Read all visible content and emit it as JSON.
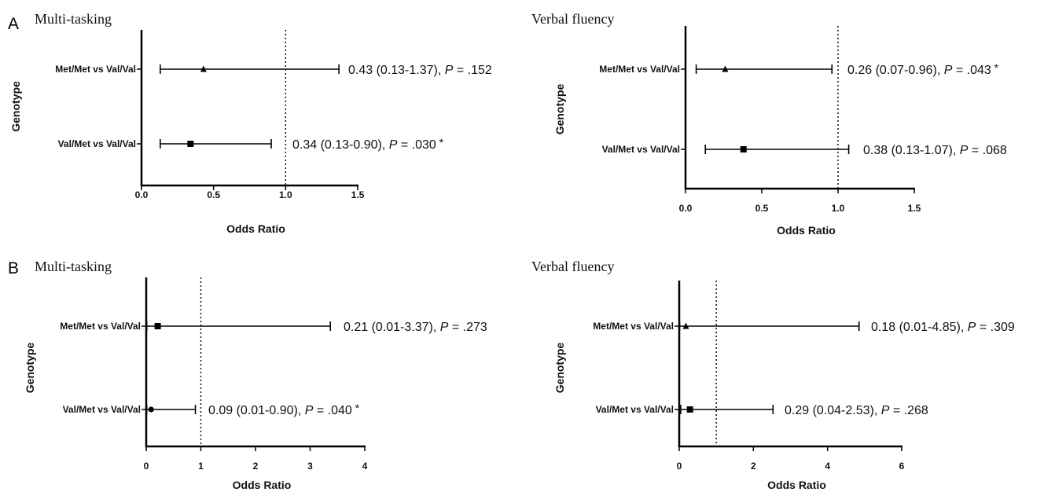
{
  "panel_letters": [
    "A",
    "B"
  ],
  "chart_data": [
    {
      "type": "forest",
      "panel": "A",
      "title": "Multi-tasking",
      "xlabel": "Odds Ratio",
      "ylabel": "Genotype",
      "xlim": [
        0,
        1.5
      ],
      "xticks": [
        "0.0",
        "0.5",
        "1.0",
        "1.5"
      ],
      "reference_line": 1.0,
      "rows": [
        {
          "label": "Met/Met vs Val/Val",
          "or": 0.43,
          "ci": [
            0.13,
            1.37
          ],
          "marker": "triangle",
          "ann_text": "0.43 (0.13-1.37), ",
          "p_label": "P",
          "p_value": " = .152",
          "star": ""
        },
        {
          "label": "Val/Met vs Val/Val",
          "or": 0.34,
          "ci": [
            0.13,
            0.9
          ],
          "marker": "square",
          "ann_text": "0.34 (0.13-0.90), ",
          "p_label": "P",
          "p_value": " = .030",
          "star": "*"
        }
      ]
    },
    {
      "type": "forest",
      "panel": "A",
      "title": "Verbal fluency",
      "xlabel": "Odds Ratio",
      "ylabel": "Genotype",
      "xlim": [
        0,
        1.5
      ],
      "xticks": [
        "0.0",
        "0.5",
        "1.0",
        "1.5"
      ],
      "reference_line": 1.0,
      "rows": [
        {
          "label": "Met/Met vs Val/Val",
          "or": 0.26,
          "ci": [
            0.07,
            0.96
          ],
          "marker": "triangle",
          "ann_text": "0.26 (0.07-0.96), ",
          "p_label": "P",
          "p_value": " = .043",
          "star": "*"
        },
        {
          "label": "Val/Met vs Val/Val",
          "or": 0.38,
          "ci": [
            0.13,
            1.07
          ],
          "marker": "square",
          "ann_text": "0.38 (0.13-1.07), ",
          "p_label": "P",
          "p_value": " = .068",
          "star": ""
        }
      ]
    },
    {
      "type": "forest",
      "panel": "B",
      "title": "Multi-tasking",
      "xlabel": "Odds Ratio",
      "ylabel": "Genotype",
      "xlim": [
        0,
        4
      ],
      "xticks": [
        "0",
        "1",
        "2",
        "3",
        "4"
      ],
      "reference_line": 1,
      "rows": [
        {
          "label": "Met/Met vs Val/Val",
          "or": 0.21,
          "ci": [
            0.01,
            3.37
          ],
          "marker": "square",
          "ann_text": "0.21 (0.01-3.37), ",
          "p_label": "P",
          "p_value": " = .273",
          "star": ""
        },
        {
          "label": "Val/Met vs Val/Val",
          "or": 0.09,
          "ci": [
            0.01,
            0.9
          ],
          "marker": "circle",
          "ann_text": "0.09 (0.01-0.90), ",
          "p_label": "P",
          "p_value": " = .040",
          "star": "*"
        }
      ]
    },
    {
      "type": "forest",
      "panel": "B",
      "title": "Verbal fluency",
      "xlabel": "Odds Ratio",
      "ylabel": "Genotype",
      "xlim": [
        0,
        6
      ],
      "xticks": [
        "0",
        "2",
        "4",
        "6"
      ],
      "reference_line": 1,
      "rows": [
        {
          "label": "Met/Met vs Val/Val",
          "or": 0.18,
          "ci": [
            0.01,
            4.85
          ],
          "marker": "triangle",
          "ann_text": "0.18 (0.01-4.85), ",
          "p_label": "P",
          "p_value": " = .309",
          "star": ""
        },
        {
          "label": "Val/Met vs Val/Val",
          "or": 0.29,
          "ci": [
            0.04,
            2.53
          ],
          "marker": "square",
          "ann_text": "0.29 (0.04-2.53), ",
          "p_label": "P",
          "p_value": " = .268",
          "star": ""
        }
      ]
    }
  ]
}
